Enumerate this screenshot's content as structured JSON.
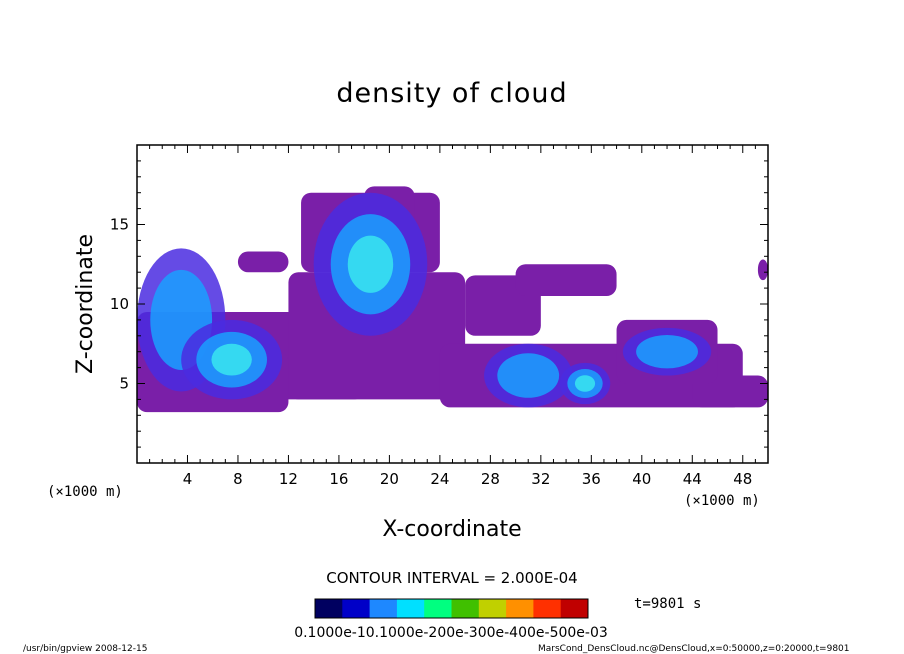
{
  "chart_data": {
    "type": "heatmap",
    "title": "density of cloud",
    "xlabel": "X-coordinate",
    "ylabel": "Z-coordinate",
    "x_unit": "(×1000 m)",
    "y_unit": "(×1000 m)",
    "xlim": [
      0,
      50
    ],
    "ylim": [
      0,
      20
    ],
    "xticks": [
      4,
      8,
      12,
      16,
      20,
      24,
      28,
      32,
      36,
      40,
      44,
      48
    ],
    "yticks": [
      5,
      10,
      15
    ],
    "contour_interval_text": "CONTOUR INTERVAL = 2.000E-04",
    "time_text": "t=9801 s",
    "colorbar": {
      "labels_text": "0.1000e-10.1000e-200e-300e-400e-500e-03",
      "colors": [
        "#000060",
        "#0000c8",
        "#1e88ff",
        "#00e0ff",
        "#00ff80",
        "#40c000",
        "#c0d000",
        "#ff9000",
        "#ff3000",
        "#c00000"
      ]
    },
    "regions": [
      {
        "cx": 3.5,
        "cz": 9.0,
        "rx": 3.5,
        "rz": 4.5,
        "level": 2
      },
      {
        "cx": 7.5,
        "cz": 6.5,
        "rx": 4.0,
        "rz": 2.5,
        "level": 3
      },
      {
        "cx": 18.5,
        "cz": 12.5,
        "rx": 4.5,
        "rz": 4.5,
        "level": 3
      },
      {
        "cx": 31.0,
        "cz": 5.5,
        "rx": 3.5,
        "rz": 2.0,
        "level": 2
      },
      {
        "cx": 35.5,
        "cz": 5.0,
        "rx": 2.0,
        "rz": 1.3,
        "level": 3
      },
      {
        "cx": 42.0,
        "cz": 7.0,
        "rx": 3.5,
        "rz": 1.5,
        "level": 2
      }
    ],
    "colors": {
      "background": "#7a1fa8",
      "mid": "#4a2ce0",
      "high": "#1aa0ff",
      "peak": "#38e6f0"
    }
  },
  "footer": {
    "left": "/usr/bin/gpview   2008-12-15",
    "right": "MarsCond_DensCloud.nc@DensCloud,x=0:50000,z=0:20000,t=9801"
  }
}
